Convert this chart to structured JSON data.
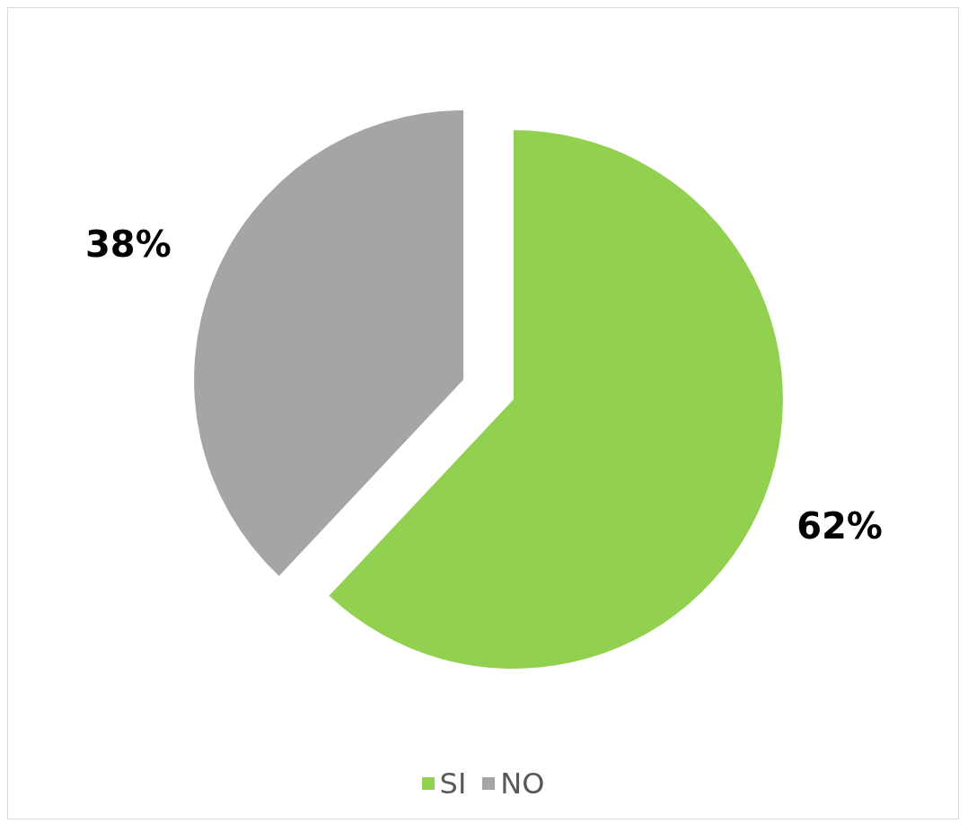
{
  "chart_data": {
    "type": "pie",
    "categories": [
      "SI",
      "NO"
    ],
    "values": [
      62,
      38
    ],
    "colors": [
      "#92d050",
      "#a5a5a5"
    ],
    "value_labels": [
      "62%",
      "38%"
    ],
    "legend": "bottom"
  }
}
